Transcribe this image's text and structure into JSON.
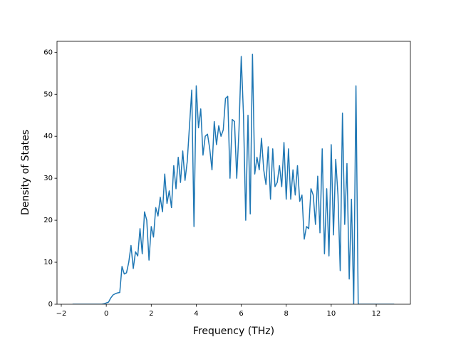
{
  "chart_data": {
    "type": "line",
    "xlabel": "Frequency (THz)",
    "ylabel": "Density of States",
    "x": [
      -1.5,
      -1.0,
      -0.5,
      -0.2,
      -0.1,
      0.0,
      0.1,
      0.2,
      0.3,
      0.4,
      0.5,
      0.6,
      0.7,
      0.8,
      0.9,
      1.0,
      1.1,
      1.2,
      1.3,
      1.4,
      1.5,
      1.6,
      1.7,
      1.8,
      1.9,
      2.0,
      2.1,
      2.2,
      2.3,
      2.4,
      2.5,
      2.6,
      2.7,
      2.8,
      2.9,
      3.0,
      3.1,
      3.2,
      3.3,
      3.4,
      3.5,
      3.6,
      3.7,
      3.8,
      3.9,
      4.0,
      4.1,
      4.2,
      4.3,
      4.4,
      4.5,
      4.6,
      4.7,
      4.8,
      4.9,
      5.0,
      5.1,
      5.2,
      5.3,
      5.4,
      5.5,
      5.6,
      5.7,
      5.8,
      5.9,
      6.0,
      6.1,
      6.2,
      6.3,
      6.4,
      6.5,
      6.6,
      6.7,
      6.8,
      6.9,
      7.0,
      7.1,
      7.2,
      7.3,
      7.4,
      7.5,
      7.6,
      7.7,
      7.8,
      7.9,
      8.0,
      8.1,
      8.2,
      8.3,
      8.4,
      8.5,
      8.6,
      8.7,
      8.8,
      8.9,
      9.0,
      9.1,
      9.2,
      9.3,
      9.4,
      9.5,
      9.6,
      9.7,
      9.8,
      9.9,
      10.0,
      10.1,
      10.2,
      10.3,
      10.4,
      10.5,
      10.6,
      10.7,
      10.8,
      10.9,
      11.0,
      11.1,
      11.2,
      12.8
    ],
    "series": [
      {
        "color": "#1f77b4",
        "values": [
          0,
          0,
          0,
          0,
          0.1,
          0.3,
          0.5,
          1.5,
          2.2,
          2.5,
          2.7,
          2.8,
          9,
          7.2,
          7.5,
          10,
          14,
          8.5,
          12.5,
          11.5,
          18,
          12,
          22,
          20,
          10.5,
          18.5,
          16,
          23,
          21,
          25.5,
          22,
          31,
          24,
          27,
          23,
          33,
          27.5,
          35,
          29,
          36.5,
          29.5,
          34,
          42.5,
          51,
          18.5,
          52,
          42,
          46.5,
          35.5,
          40,
          40.5,
          37,
          32,
          43.5,
          38,
          42.5,
          40,
          41.5,
          49,
          49.5,
          30,
          44,
          43.5,
          30,
          41.5,
          59,
          45,
          20,
          45,
          21.5,
          59.5,
          31,
          35,
          32,
          39.5,
          32,
          28.5,
          37.5,
          25,
          37,
          28,
          29,
          33,
          28,
          38.5,
          25,
          37,
          25,
          32,
          26,
          33,
          24.5,
          26,
          15.5,
          18.5,
          18,
          27.5,
          26,
          19,
          30.5,
          17,
          37,
          12,
          27.5,
          11.5,
          38,
          16.5,
          34.5,
          26,
          8,
          45.5,
          19,
          33.5,
          6,
          25,
          0,
          52,
          0,
          0
        ]
      }
    ],
    "xlim": [
      -2.19,
      13.52
    ],
    "ylim": [
      0,
      62.6
    ],
    "xticks": [
      {
        "value": -2,
        "label": "−2"
      },
      0,
      2,
      4,
      6,
      8,
      10,
      12
    ],
    "yticks": [
      0,
      10,
      20,
      30,
      40,
      50,
      60
    ],
    "grid": false
  }
}
